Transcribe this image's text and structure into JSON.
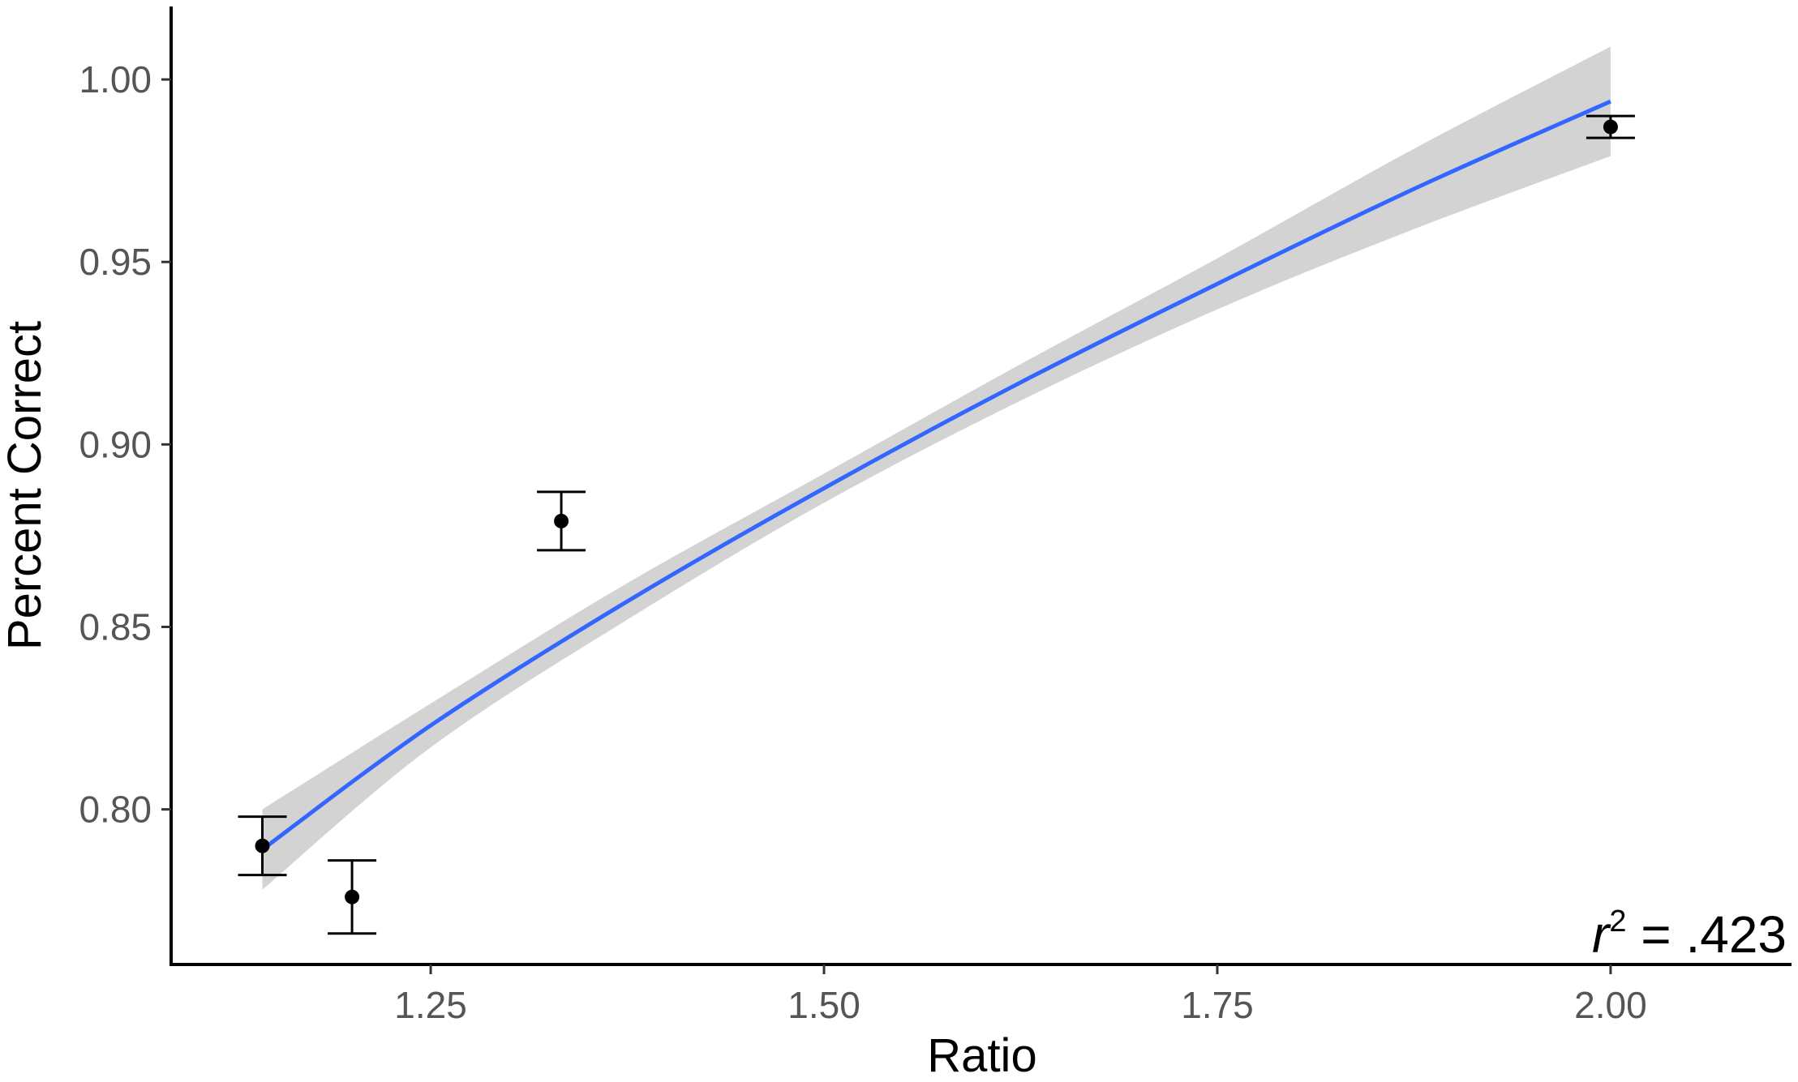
{
  "chart_data": {
    "type": "scatter",
    "xlabel": "Ratio",
    "ylabel": "Percent Correct",
    "xlim": [
      1.085,
      2.115
    ],
    "ylim": [
      0.7575,
      1.02
    ],
    "x_ticks": [
      1.25,
      1.5,
      1.75,
      2.0
    ],
    "x_tick_labels": [
      "1.25",
      "1.50",
      "1.75",
      "2.00"
    ],
    "y_ticks": [
      0.8,
      0.85,
      0.9,
      0.95,
      1.0
    ],
    "y_tick_labels": [
      "0.80",
      "0.85",
      "0.90",
      "0.95",
      "1.00"
    ],
    "points": [
      {
        "x": 1.143,
        "y": 0.79,
        "lo": 0.782,
        "hi": 0.798
      },
      {
        "x": 1.2,
        "y": 0.776,
        "lo": 0.766,
        "hi": 0.786
      },
      {
        "x": 1.333,
        "y": 0.879,
        "lo": 0.871,
        "hi": 0.887
      },
      {
        "x": 2.0,
        "y": 0.987,
        "lo": 0.984,
        "hi": 0.99
      }
    ],
    "fit_line": {
      "x": [
        1.143,
        1.25,
        1.375,
        1.5,
        1.625,
        1.75,
        1.875,
        2.0
      ],
      "y": [
        0.789,
        0.823,
        0.857,
        0.888,
        0.917,
        0.944,
        0.97,
        0.994
      ],
      "ci_lo": [
        0.778,
        0.817,
        0.852,
        0.884,
        0.912,
        0.937,
        0.959,
        0.979
      ],
      "ci_hi": [
        0.8,
        0.829,
        0.862,
        0.892,
        0.922,
        0.951,
        0.981,
        1.009
      ],
      "color": "#3366FF",
      "band_color": "#D3D3D3"
    },
    "annotation": {
      "var": "r",
      "sup": "2",
      "rest": " = .423"
    },
    "grid": false,
    "legend": "none"
  }
}
